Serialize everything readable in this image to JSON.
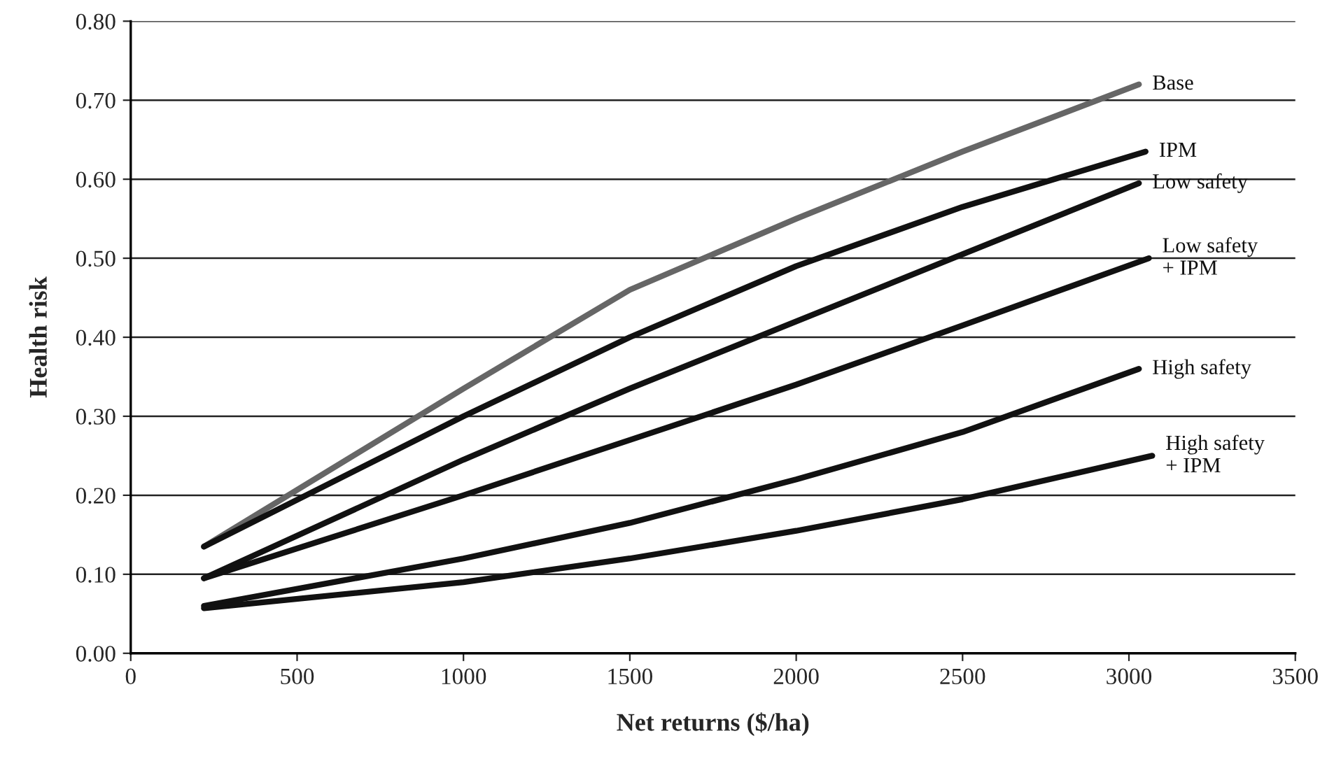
{
  "chart_data": {
    "type": "line",
    "xlabel": "Net returns ($/ha)",
    "ylabel": "Health risk",
    "xlim": [
      0,
      3500
    ],
    "xticks": [
      0,
      500,
      1000,
      1500,
      2000,
      2500,
      3000,
      3500
    ],
    "ylim": [
      0,
      0.8
    ],
    "yticks": [
      {
        "value": 0,
        "label": "0.00"
      },
      {
        "value": 0.1,
        "label": "0.10"
      },
      {
        "value": 0.2,
        "label": "0.20"
      },
      {
        "value": 0.3,
        "label": "0.30"
      },
      {
        "value": 0.4,
        "label": "0.40"
      },
      {
        "value": 0.5,
        "label": "0.50"
      },
      {
        "value": 0.6,
        "label": "0.60"
      },
      {
        "value": 0.7,
        "label": "0.70"
      },
      {
        "value": 0.8,
        "label": "0.80"
      }
    ],
    "grid": "y",
    "legend": false,
    "marker": "none",
    "line_style": "solid",
    "series": [
      {
        "name": "Base",
        "color": "#666666",
        "x": [
          220,
          1000,
          1500,
          2000,
          2500,
          3030
        ],
        "values": [
          0.135,
          0.335,
          0.46,
          0.55,
          0.635,
          0.72
        ]
      },
      {
        "name": "IPM",
        "color": "#111111",
        "x": [
          220,
          1000,
          1500,
          2000,
          2500,
          3050
        ],
        "values": [
          0.135,
          0.3,
          0.4,
          0.49,
          0.565,
          0.635
        ]
      },
      {
        "name": "Low safety",
        "color": "#111111",
        "x": [
          220,
          1000,
          1500,
          2000,
          2500,
          3030
        ],
        "values": [
          0.095,
          0.245,
          0.335,
          0.42,
          0.505,
          0.595
        ]
      },
      {
        "name": "Low safety\n+ IPM",
        "color": "#111111",
        "x": [
          220,
          1000,
          1500,
          2000,
          2500,
          3060
        ],
        "values": [
          0.095,
          0.2,
          0.27,
          0.34,
          0.415,
          0.5
        ]
      },
      {
        "name": "High safety",
        "color": "#111111",
        "x": [
          220,
          1000,
          1500,
          2000,
          2500,
          3030
        ],
        "values": [
          0.06,
          0.12,
          0.165,
          0.22,
          0.28,
          0.36
        ]
      },
      {
        "name": "High safety\n+ IPM",
        "color": "#111111",
        "x": [
          220,
          1000,
          1500,
          2000,
          2500,
          3070
        ],
        "values": [
          0.057,
          0.09,
          0.12,
          0.155,
          0.195,
          0.25
        ]
      }
    ]
  }
}
